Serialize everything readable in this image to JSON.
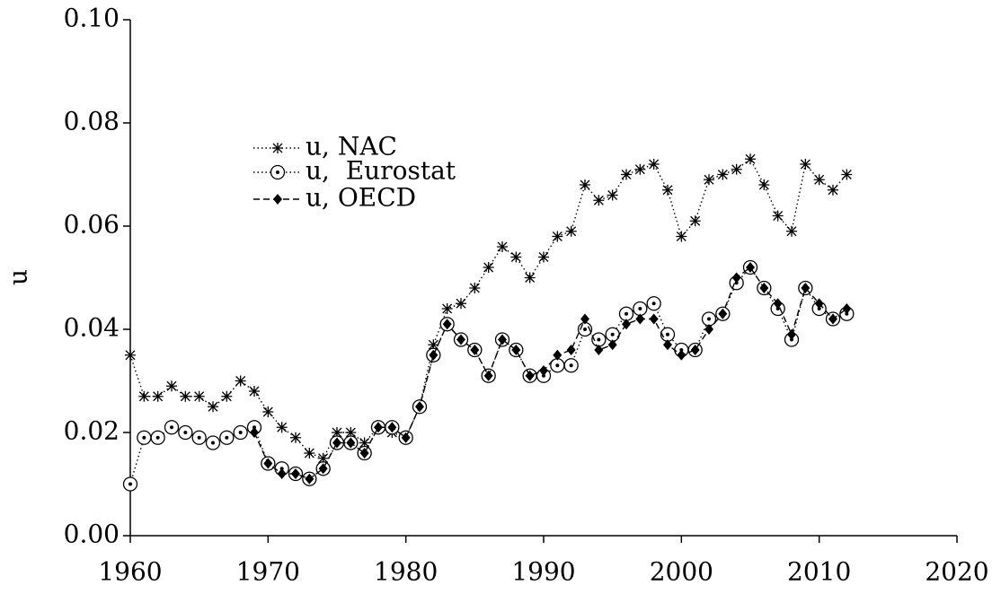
{
  "chart_data": {
    "type": "line",
    "ylabel": "u",
    "xlim": [
      1960,
      2020
    ],
    "xticks": [
      1960,
      1970,
      1980,
      1990,
      2000,
      2010,
      2020
    ],
    "ylim": [
      0,
      0.1
    ],
    "yticks": [
      {
        "value": 0,
        "label": "0.00"
      },
      {
        "value": 0.02,
        "label": "0.02"
      },
      {
        "value": 0.04,
        "label": "0.04"
      },
      {
        "value": 0.06,
        "label": "0.06"
      },
      {
        "value": 0.08,
        "label": "0.08"
      },
      {
        "value": 0.1,
        "label": "0.10"
      }
    ],
    "x": [
      1960,
      1961,
      1962,
      1963,
      1964,
      1965,
      1966,
      1967,
      1968,
      1969,
      1970,
      1971,
      1972,
      1973,
      1974,
      1975,
      1976,
      1977,
      1978,
      1979,
      1980,
      1981,
      1982,
      1983,
      1984,
      1985,
      1986,
      1987,
      1988,
      1989,
      1990,
      1991,
      1992,
      1993,
      1994,
      1995,
      1996,
      1997,
      1998,
      1999,
      2000,
      2001,
      2002,
      2003,
      2004,
      2005,
      2006,
      2007,
      2008,
      2009,
      2010,
      2011,
      2012
    ],
    "series": [
      {
        "name": "u, NAC",
        "color": "#000000",
        "marker": "asterisk",
        "dash": "dotted",
        "values": [
          0.035,
          0.027,
          0.027,
          0.029,
          0.027,
          0.027,
          0.025,
          0.027,
          0.03,
          0.028,
          0.024,
          0.021,
          0.019,
          0.016,
          0.015,
          0.02,
          0.02,
          0.018,
          0.021,
          0.02,
          0.019,
          0.025,
          0.037,
          0.044,
          0.045,
          0.048,
          0.052,
          0.056,
          0.054,
          0.05,
          0.054,
          0.058,
          0.059,
          0.068,
          0.065,
          0.066,
          0.07,
          0.071,
          0.072,
          0.067,
          0.058,
          0.061,
          0.069,
          0.07,
          0.071,
          0.073,
          0.068,
          0.062,
          0.059,
          0.072,
          0.069,
          0.067,
          0.07
        ]
      },
      {
        "name": "u,  Eurostat",
        "color": "#000000",
        "marker": "circle",
        "dash": "dotted",
        "values": [
          0.01,
          0.019,
          0.019,
          0.021,
          0.02,
          0.019,
          0.018,
          0.019,
          0.02,
          0.021,
          0.014,
          0.013,
          0.012,
          0.011,
          0.013,
          0.018,
          0.018,
          0.016,
          0.021,
          0.021,
          0.019,
          0.025,
          0.035,
          0.041,
          0.038,
          0.036,
          0.031,
          0.038,
          0.036,
          0.031,
          0.031,
          0.033,
          0.033,
          0.04,
          0.038,
          0.039,
          0.043,
          0.044,
          0.045,
          0.039,
          0.036,
          0.036,
          0.042,
          0.043,
          0.049,
          0.052,
          0.048,
          0.044,
          0.038,
          0.048,
          0.044,
          0.042,
          0.043
        ]
      },
      {
        "name": "u, OECD",
        "color": "#000000",
        "marker": "diamond",
        "dash": "dashed",
        "values": [
          null,
          null,
          null,
          null,
          null,
          null,
          null,
          null,
          null,
          0.02,
          0.014,
          0.012,
          0.012,
          0.011,
          0.013,
          0.018,
          0.018,
          0.016,
          0.021,
          0.021,
          0.019,
          0.025,
          0.035,
          0.041,
          0.038,
          0.036,
          0.031,
          0.038,
          0.036,
          0.031,
          0.032,
          0.035,
          0.036,
          0.042,
          0.036,
          0.037,
          0.041,
          0.042,
          0.042,
          0.037,
          0.035,
          0.036,
          0.04,
          0.043,
          0.05,
          0.052,
          0.048,
          0.045,
          0.039,
          0.048,
          0.045,
          0.042,
          0.044
        ]
      }
    ]
  }
}
